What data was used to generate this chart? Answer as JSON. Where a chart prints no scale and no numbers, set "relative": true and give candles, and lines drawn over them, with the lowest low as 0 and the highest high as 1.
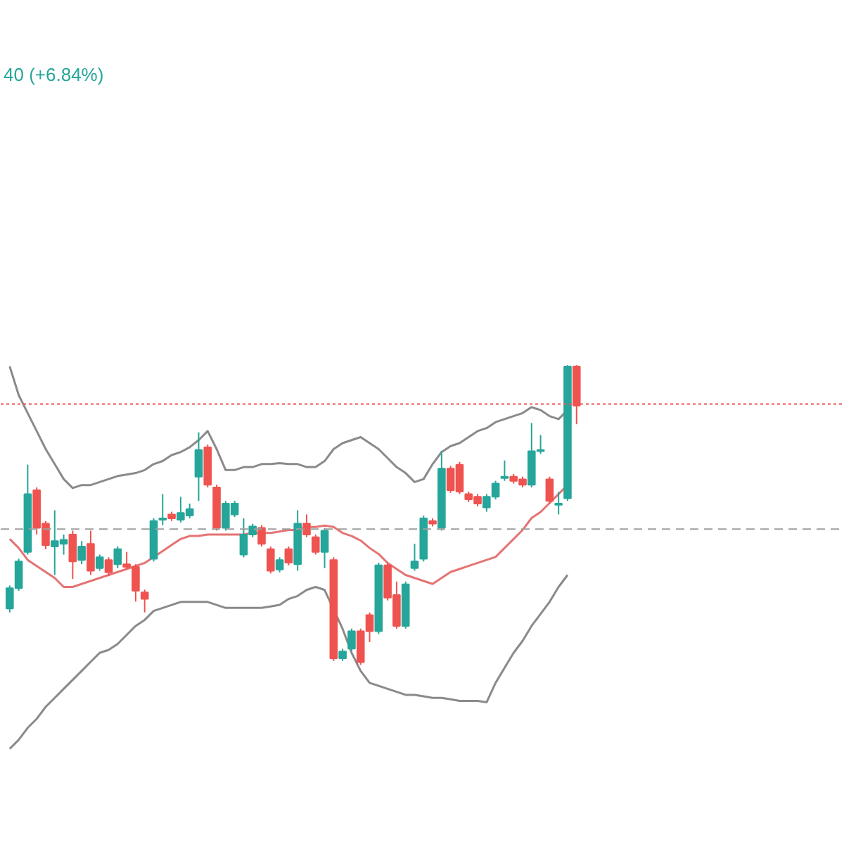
{
  "chart_data": {
    "type": "candlestick",
    "relative": true,
    "annotations": [
      "40 (+6.84%)"
    ],
    "categories": [
      null,
      null,
      null,
      null,
      null,
      null,
      null,
      null,
      null,
      null,
      null,
      null,
      null,
      null,
      null,
      null,
      null,
      null,
      null,
      null,
      null,
      null,
      null,
      null,
      null,
      null,
      null,
      null,
      null,
      null,
      null,
      null,
      null,
      null,
      null,
      null,
      null,
      null,
      null,
      null,
      null,
      null,
      null,
      null,
      null,
      null,
      null,
      null,
      null,
      null,
      null,
      null,
      null,
      null,
      null,
      null,
      null,
      null,
      null,
      null,
      null,
      null,
      null,
      null
    ],
    "ohlc": [
      [
        0.188,
        0.265,
        0.175,
        0.256
      ],
      [
        0.256,
        0.354,
        0.247,
        0.345
      ],
      [
        0.377,
        0.668,
        0.368,
        0.57
      ],
      [
        0.583,
        0.592,
        0.435,
        0.457
      ],
      [
        0.471,
        0.48,
        0.386,
        0.399
      ],
      [
        0.395,
        0.516,
        0.3,
        0.413
      ],
      [
        0.404,
        0.435,
        0.368,
        0.417
      ],
      [
        0.435,
        0.448,
        0.287,
        0.345
      ],
      [
        0.35,
        0.413,
        0.336,
        0.395
      ],
      [
        0.404,
        0.448,
        0.3,
        0.314
      ],
      [
        0.323,
        0.368,
        0.314,
        0.359
      ],
      [
        0.35,
        0.359,
        0.296,
        0.309
      ],
      [
        0.336,
        0.395,
        0.323,
        0.386
      ],
      [
        0.336,
        0.377,
        0.318,
        0.327
      ],
      [
        0.327,
        0.336,
        0.211,
        0.247
      ],
      [
        0.242,
        0.251,
        0.175,
        0.22
      ],
      [
        0.354,
        0.489,
        0.345,
        0.48
      ],
      [
        0.484,
        0.57,
        0.466,
        0.489
      ],
      [
        0.502,
        0.511,
        0.48,
        0.489
      ],
      [
        0.484,
        0.561,
        0.475,
        0.507
      ],
      [
        0.498,
        0.538,
        0.489,
        0.52
      ],
      [
        0.628,
        0.776,
        0.547,
        0.717
      ],
      [
        0.726,
        0.735,
        0.592,
        0.601
      ],
      [
        0.592,
        0.601,
        0.448,
        0.457
      ],
      [
        0.457,
        0.547,
        0.448,
        0.538
      ],
      [
        0.502,
        0.547,
        0.493,
        0.538
      ],
      [
        0.368,
        0.489,
        0.359,
        0.435
      ],
      [
        0.435,
        0.471,
        0.426,
        0.462
      ],
      [
        0.457,
        0.466,
        0.395,
        0.404
      ],
      [
        0.386,
        0.395,
        0.305,
        0.314
      ],
      [
        0.318,
        0.359,
        0.309,
        0.35
      ],
      [
        0.386,
        0.395,
        0.332,
        0.341
      ],
      [
        0.336,
        0.516,
        0.314,
        0.471
      ],
      [
        0.471,
        0.502,
        0.426,
        0.435
      ],
      [
        0.426,
        0.435,
        0.368,
        0.377
      ],
      [
        0.377,
        0.457,
        0.323,
        0.448
      ],
      [
        0.35,
        0.359,
        0.013,
        0.022
      ],
      [
        0.022,
        0.054,
        0.013,
        0.045
      ],
      [
        0.054,
        0.121,
        0.045,
        0.112
      ],
      [
        0.112,
        0.121,
        0,
        0.009
      ],
      [
        0.166,
        0.175,
        0.076,
        0.112
      ],
      [
        0.112,
        0.341,
        0.103,
        0.332
      ],
      [
        0.332,
        0.341,
        0.215,
        0.224
      ],
      [
        0.233,
        0.278,
        0.121,
        0.13
      ],
      [
        0.13,
        0.278,
        0.121,
        0.269
      ],
      [
        0.323,
        0.404,
        0.314,
        0.345
      ],
      [
        0.354,
        0.498,
        0.345,
        0.489
      ],
      [
        0.48,
        0.489,
        0.462,
        0.471
      ],
      [
        0.457,
        0.713,
        0.448,
        0.655
      ],
      [
        0.655,
        0.664,
        0.574,
        0.583
      ],
      [
        0.668,
        0.677,
        0.57,
        0.578
      ],
      [
        0.57,
        0.578,
        0.543,
        0.552
      ],
      [
        0.561,
        0.57,
        0.529,
        0.538
      ],
      [
        0.525,
        0.57,
        0.511,
        0.561
      ],
      [
        0.561,
        0.614,
        0.552,
        0.605
      ],
      [
        0.623,
        0.682,
        0.614,
        0.628
      ],
      [
        0.628,
        0.637,
        0.605,
        0.614
      ],
      [
        0.619,
        0.628,
        0.592,
        0.601
      ],
      [
        0.601,
        0.807,
        0.592,
        0.713
      ],
      [
        0.713,
        0.767,
        0.704,
        0.717
      ],
      [
        0.619,
        0.628,
        0.538,
        0.547
      ],
      [
        0.534,
        0.578,
        0.502,
        0.538
      ],
      [
        0.556,
        1,
        0.547,
        0.996
      ],
      [
        0.996,
        1,
        0.803,
        0.865
      ]
    ],
    "colors": [
      "#26a69a",
      "#26a69a",
      "#26a69a",
      "#ef5350",
      "#ef5350",
      "#26a69a",
      "#26a69a",
      "#ef5350",
      "#26a69a",
      "#ef5350",
      "#26a69a",
      "#ef5350",
      "#26a69a",
      "#ef5350",
      "#ef5350",
      "#ef5350",
      "#26a69a",
      "#26a69a",
      "#ef5350",
      "#26a69a",
      "#26a69a",
      "#26a69a",
      "#ef5350",
      "#ef5350",
      "#26a69a",
      "#26a69a",
      "#26a69a",
      "#26a69a",
      "#ef5350",
      "#ef5350",
      "#26a69a",
      "#ef5350",
      "#26a69a",
      "#ef5350",
      "#ef5350",
      "#26a69a",
      "#ef5350",
      "#26a69a",
      "#26a69a",
      "#ef5350",
      "#ef5350",
      "#26a69a",
      "#ef5350",
      "#ef5350",
      "#26a69a",
      "#26a69a",
      "#26a69a",
      "#ef5350",
      "#26a69a",
      "#ef5350",
      "#ef5350",
      "#ef5350",
      "#ef5350",
      "#26a69a",
      "#26a69a",
      "#26a69a",
      "#ef5350",
      "#ef5350",
      "#26a69a",
      "#26a69a",
      "#ef5350",
      "#26a69a",
      "#26a69a",
      "#ef5350"
    ],
    "series": [
      {
        "type": "line",
        "color": "#8a8a8a",
        "values": [
          0.996,
          0.9,
          0.84,
          0.78,
          0.72,
          0.67,
          0.62,
          0.59,
          0.6,
          0.6,
          0.61,
          0.62,
          0.63,
          0.635,
          0.64,
          0.65,
          0.67,
          0.68,
          0.7,
          0.71,
          0.726,
          0.75,
          0.78,
          0.72,
          0.65,
          0.65,
          0.66,
          0.66,
          0.67,
          0.67,
          0.673,
          0.67,
          0.67,
          0.66,
          0.66,
          0.68,
          0.72,
          0.74,
          0.75,
          0.76,
          0.74,
          0.72,
          0.69,
          0.66,
          0.64,
          0.61,
          0.62,
          0.67,
          0.71,
          0.73,
          0.74,
          0.76,
          0.78,
          0.79,
          0.81,
          0.82,
          0.83,
          0.84,
          0.86,
          0.85,
          0.83,
          0.82,
          0.85,
          null
        ]
      },
      {
        "type": "line",
        "color": "#e57373",
        "values": [
          0.42,
          0.39,
          0.35,
          0.33,
          0.31,
          0.29,
          0.26,
          0.26,
          0.27,
          0.28,
          0.29,
          0.3,
          0.31,
          0.32,
          0.33,
          0.34,
          0.36,
          0.38,
          0.4,
          0.42,
          0.43,
          0.43,
          0.435,
          0.435,
          0.435,
          0.435,
          0.435,
          0.44,
          0.44,
          0.44,
          0.445,
          0.45,
          0.45,
          0.46,
          0.46,
          0.465,
          0.46,
          0.44,
          0.43,
          0.415,
          0.39,
          0.37,
          0.34,
          0.32,
          0.3,
          0.29,
          0.28,
          0.27,
          0.29,
          0.31,
          0.32,
          0.33,
          0.34,
          0.35,
          0.36,
          0.39,
          0.42,
          0.45,
          0.49,
          0.51,
          0.54,
          0.57,
          0.6,
          null
        ]
      },
      {
        "type": "line",
        "color": "#8a8a8a",
        "values": [
          -0.28,
          -0.25,
          -0.21,
          -0.18,
          -0.14,
          -0.11,
          -0.08,
          -0.05,
          -0.02,
          0.01,
          0.04,
          0.05,
          0.07,
          0.1,
          0.13,
          0.15,
          0.18,
          0.19,
          0.2,
          0.21,
          0.21,
          0.21,
          0.21,
          0.2,
          0.19,
          0.19,
          0.19,
          0.19,
          0.19,
          0.195,
          0.2,
          0.22,
          0.23,
          0.25,
          0.26,
          0.25,
          null,
          0.12,
          0.04,
          -0.02,
          -0.06,
          -0.07,
          -0.08,
          -0.09,
          -0.1,
          -0.1,
          -0.105,
          -0.11,
          -0.11,
          -0.115,
          -0.12,
          -0.12,
          -0.12,
          -0.125,
          -0.06,
          -0.01,
          0.04,
          0.08,
          0.13,
          0.17,
          0.21,
          0.26,
          0.3,
          null
        ]
      }
    ],
    "ref_lines": [
      {
        "axis": "y",
        "value": 0.453,
        "color": "#9e9e9e",
        "line_style": "dashed"
      },
      {
        "axis": "y",
        "value": 0.87,
        "color": "#ef5350",
        "line_style": "dotted"
      }
    ]
  }
}
